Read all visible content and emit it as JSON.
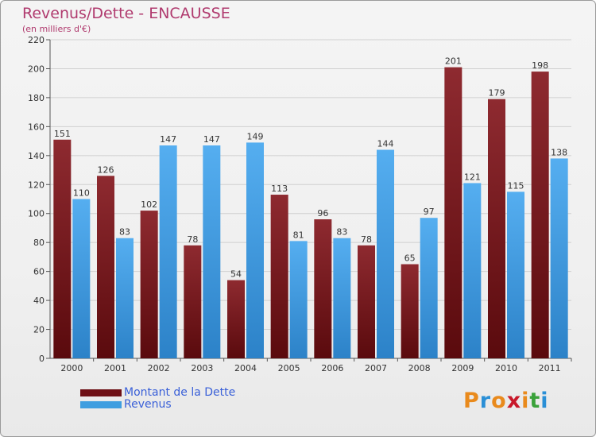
{
  "chart_data": {
    "type": "bar",
    "title": "Revenus/Dette - ENCAUSSE",
    "subtitle": "(en milliers d'€)",
    "categories": [
      "2000",
      "2001",
      "2002",
      "2003",
      "2004",
      "2005",
      "2006",
      "2007",
      "2008",
      "2009",
      "2010",
      "2011"
    ],
    "series": [
      {
        "name": "Montant de la Dette",
        "color": "#7a1a1f",
        "values": [
          151,
          126,
          102,
          78,
          54,
          113,
          96,
          78,
          65,
          201,
          179,
          198
        ]
      },
      {
        "name": "Revenus",
        "color": "#3f9ee0",
        "values": [
          110,
          83,
          147,
          147,
          149,
          81,
          83,
          144,
          97,
          121,
          115,
          138
        ]
      }
    ],
    "ylim": [
      0,
      220
    ],
    "yticks": [
      0,
      20,
      40,
      60,
      80,
      100,
      120,
      140,
      160,
      180,
      200,
      220
    ],
    "grid": true,
    "legend": "bottom-left"
  },
  "logo": {
    "text": "Proxiti",
    "colors": [
      "#e98a1c",
      "#2a8fd6",
      "#e98a1c",
      "#c8182a",
      "#e98a1c",
      "#3aa23a",
      "#2a8fd6"
    ]
  }
}
